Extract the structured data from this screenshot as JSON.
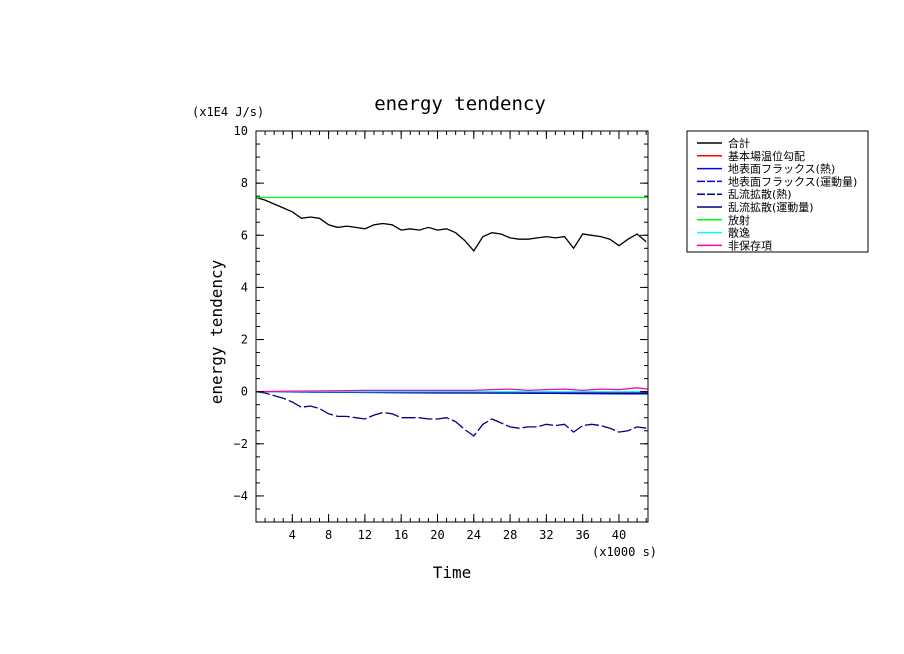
{
  "chart_data": {
    "type": "line",
    "title": "energy tendency",
    "xlabel": "Time",
    "ylabel": "energy tendency",
    "x_scale_label": "(x1000 s)",
    "y_scale_label": "(x1E4 J/s)",
    "xlim": [
      0,
      43.2
    ],
    "ylim": [
      -5,
      10
    ],
    "x_ticks": [
      4,
      8,
      12,
      16,
      20,
      24,
      28,
      32,
      36,
      40
    ],
    "x_tick_labels": [
      "4",
      "8",
      "12",
      "16",
      "20",
      "24",
      "28",
      "32",
      "36",
      "40"
    ],
    "y_ticks": [
      -4,
      -2,
      0,
      2,
      4,
      6,
      8,
      10
    ],
    "y_tick_labels": [
      "−4",
      "−2",
      "0",
      "2",
      "4",
      "6",
      "8",
      "10"
    ],
    "grid": false,
    "legend_position": "outside-right",
    "series": [
      {
        "name": "合計",
        "color": "#000000",
        "dash": "solid",
        "x": [
          0,
          1,
          2,
          3,
          4,
          5,
          6,
          7,
          8,
          9,
          10,
          11,
          12,
          13,
          14,
          15,
          16,
          17,
          18,
          19,
          20,
          21,
          22,
          23,
          24,
          25,
          26,
          27,
          28,
          29,
          30,
          31,
          32,
          33,
          34,
          35,
          36,
          37,
          38,
          39,
          40,
          41,
          42,
          43
        ],
        "y": [
          7.45,
          7.35,
          7.2,
          7.05,
          6.9,
          6.65,
          6.7,
          6.65,
          6.4,
          6.3,
          6.35,
          6.3,
          6.25,
          6.4,
          6.45,
          6.4,
          6.2,
          6.25,
          6.2,
          6.3,
          6.2,
          6.25,
          6.1,
          5.8,
          5.4,
          5.95,
          6.1,
          6.05,
          5.9,
          5.85,
          5.85,
          5.9,
          5.95,
          5.9,
          5.95,
          5.5,
          6.05,
          6.0,
          5.95,
          5.85,
          5.6,
          5.85,
          6.05,
          5.75
        ]
      },
      {
        "name": "基本場温位勾配",
        "color": "#ff0000",
        "dash": "solid",
        "x": [
          0,
          43.2
        ],
        "y": [
          0.0,
          0.0
        ]
      },
      {
        "name": "地表面フラックス(熱)",
        "color": "#0000ff",
        "dash": "solid",
        "x": [
          0,
          10,
          20,
          30,
          40,
          43.2
        ],
        "y": [
          0.0,
          -0.03,
          -0.05,
          -0.06,
          -0.08,
          -0.08
        ]
      },
      {
        "name": "地表面フラックス(運動量)",
        "color": "#0000ff",
        "dash": "dash",
        "x": [
          0,
          10,
          20,
          30,
          40,
          43.2
        ],
        "y": [
          0.0,
          -0.02,
          -0.03,
          -0.04,
          -0.05,
          -0.05
        ]
      },
      {
        "name": "乱流拡散(熱)",
        "color": "#00008b",
        "dash": "dash",
        "x": [
          0,
          1,
          2,
          3,
          4,
          5,
          6,
          7,
          8,
          9,
          10,
          11,
          12,
          13,
          14,
          15,
          16,
          17,
          18,
          19,
          20,
          21,
          22,
          23,
          24,
          25,
          26,
          27,
          28,
          29,
          30,
          31,
          32,
          33,
          34,
          35,
          36,
          37,
          38,
          39,
          40,
          41,
          42,
          43
        ],
        "y": [
          0.0,
          -0.05,
          -0.15,
          -0.25,
          -0.4,
          -0.6,
          -0.55,
          -0.65,
          -0.85,
          -0.95,
          -0.95,
          -1.0,
          -1.05,
          -0.9,
          -0.8,
          -0.85,
          -1.0,
          -1.0,
          -1.0,
          -1.05,
          -1.05,
          -1.0,
          -1.15,
          -1.45,
          -1.7,
          -1.25,
          -1.05,
          -1.2,
          -1.35,
          -1.4,
          -1.35,
          -1.35,
          -1.25,
          -1.3,
          -1.25,
          -1.55,
          -1.3,
          -1.25,
          -1.3,
          -1.4,
          -1.55,
          -1.5,
          -1.35,
          -1.4
        ]
      },
      {
        "name": "乱流拡散(運動量)",
        "color": "#00008b",
        "dash": "solid",
        "x": [
          0,
          10,
          20,
          30,
          40,
          43.2
        ],
        "y": [
          0.0,
          -0.02,
          -0.04,
          -0.05,
          -0.06,
          -0.06
        ]
      },
      {
        "name": "放射",
        "color": "#00ff00",
        "dash": "solid",
        "x": [
          0,
          43.2
        ],
        "y": [
          7.45,
          7.45
        ]
      },
      {
        "name": "散逸",
        "color": "#00ffff",
        "dash": "solid",
        "x": [
          0,
          43.2
        ],
        "y": [
          0.0,
          0.0
        ]
      },
      {
        "name": "非保存項",
        "color": "#ff00aa",
        "dash": "solid",
        "x": [
          0,
          4,
          8,
          12,
          16,
          20,
          24,
          26,
          28,
          30,
          32,
          34,
          36,
          38,
          40,
          42,
          43.2
        ],
        "y": [
          0.0,
          0.02,
          0.03,
          0.05,
          0.05,
          0.05,
          0.05,
          0.08,
          0.1,
          0.05,
          0.08,
          0.1,
          0.05,
          0.1,
          0.08,
          0.15,
          0.1
        ]
      }
    ]
  }
}
